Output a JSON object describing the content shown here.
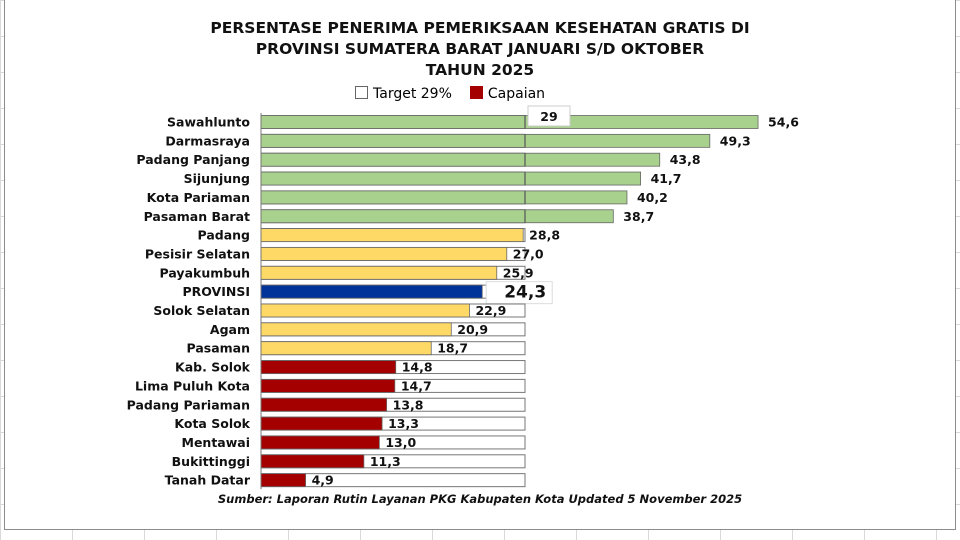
{
  "chart_data": {
    "type": "bar",
    "orientation": "horizontal",
    "title": "PERSENTASE PENERIMA PEMERIKSAAN KESEHATAN GRATIS DI PROVINSI SUMATERA BARAT JANUARI S/D OKTOBER TAHUN 2025",
    "title_lines": [
      "PERSENTASE PENERIMA PEMERIKSAAN KESEHATAN GRATIS DI",
      "PROVINSI SUMATERA BARAT JANUARI S/D OKTOBER",
      "TAHUN 2025"
    ],
    "legend": [
      {
        "label": "Target 29%",
        "color": "#ffffff"
      },
      {
        "label": "Capaian",
        "color": "#a50000"
      }
    ],
    "legend_placement": "top",
    "target": 29,
    "target_label": "29",
    "xlim": [
      0,
      55
    ],
    "grid": false,
    "categories": [
      "Sawahlunto",
      "Darmasraya",
      "Padang Panjang",
      "Sijunjung",
      "Kota Pariaman",
      "Pasaman Barat",
      "Padang",
      "Pesisir Selatan",
      "Payakumbuh",
      "PROVINSI",
      "Solok Selatan",
      "Agam",
      "Pasaman",
      "Kab. Solok",
      "Lima Puluh Kota",
      "Padang Pariaman",
      "Kota Solok",
      "Mentawai",
      "Bukittinggi",
      "Tanah Datar"
    ],
    "values": [
      54.6,
      49.3,
      43.8,
      41.7,
      40.2,
      38.7,
      28.8,
      27.0,
      25.9,
      24.3,
      22.9,
      20.9,
      18.7,
      14.8,
      14.7,
      13.8,
      13.3,
      13.0,
      11.3,
      4.9
    ],
    "value_labels": [
      "54,6",
      "49,3",
      "43,8",
      "41,7",
      "40,2",
      "38,7",
      "28,8",
      "27,0",
      "25,9",
      "24,3",
      "22,9",
      "20,9",
      "18,7",
      "14,8",
      "14,7",
      "13,8",
      "13,3",
      "13,0",
      "11,3",
      "4,9"
    ],
    "colors": {
      "above_target": "#a9d18e",
      "near_target": "#ffd966",
      "province": "#003399",
      "low": "#a50000"
    }
  },
  "source": "Sumber: Laporan Rutin Layanan PKG Kabupaten Kota Updated 5 November 2025"
}
